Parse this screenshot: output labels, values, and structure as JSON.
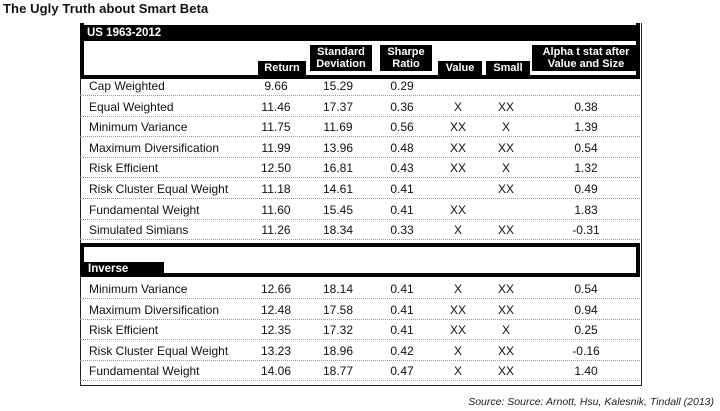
{
  "title": "The Ugly Truth about Smart Beta",
  "headers": {
    "section1": "US 1963-2012",
    "return": "Return",
    "std_line1": "Standard",
    "std_line2": "Deviation",
    "sharpe_line1": "Sharpe",
    "sharpe_line2": "Ratio",
    "value": "Value",
    "small": "Small",
    "alpha_line1": "Alpha t stat after",
    "alpha_line2": "Value and Size"
  },
  "section1_rows": [
    {
      "name": "Cap Weighted",
      "ret": "9.66",
      "sd": "15.29",
      "sr": "0.29",
      "val": "",
      "sm": "",
      "alp": ""
    },
    {
      "name": "Equal Weighted",
      "ret": "11.46",
      "sd": "17.37",
      "sr": "0.36",
      "val": "X",
      "sm": "XX",
      "alp": "0.38"
    },
    {
      "name": "Minimum Variance",
      "ret": "11.75",
      "sd": "11.69",
      "sr": "0.56",
      "val": "XX",
      "sm": "X",
      "alp": "1.39"
    },
    {
      "name": "Maximum Diversification",
      "ret": "11.99",
      "sd": "13.96",
      "sr": "0.48",
      "val": "XX",
      "sm": "XX",
      "alp": "0.54"
    },
    {
      "name": "Risk Efficient",
      "ret": "12.50",
      "sd": "16.81",
      "sr": "0.43",
      "val": "XX",
      "sm": "X",
      "alp": "1.32"
    },
    {
      "name": "Risk Cluster Equal Weight",
      "ret": "11.18",
      "sd": "14.61",
      "sr": "0.41",
      "val": "",
      "sm": "XX",
      "alp": "0.49"
    },
    {
      "name": "Fundamental Weight",
      "ret": "11.60",
      "sd": "15.45",
      "sr": "0.41",
      "val": "XX",
      "sm": "",
      "alp": "1.83"
    },
    {
      "name": "Simulated Simians",
      "ret": "11.26",
      "sd": "18.34",
      "sr": "0.33",
      "val": "X",
      "sm": "XX",
      "alp": "-0.31"
    }
  ],
  "section2_title": "Inverse Strategies",
  "section2_rows": [
    {
      "name": "Minimum Variance",
      "ret": "12.66",
      "sd": "18.14",
      "sr": "0.41",
      "val": "X",
      "sm": "XX",
      "alp": "0.54"
    },
    {
      "name": "Maximum Diversification",
      "ret": "12.48",
      "sd": "17.58",
      "sr": "0.41",
      "val": "XX",
      "sm": "XX",
      "alp": "0.94"
    },
    {
      "name": "Risk Efficient",
      "ret": "12.35",
      "sd": "17.32",
      "sr": "0.41",
      "val": "XX",
      "sm": "X",
      "alp": "0.25"
    },
    {
      "name": "Risk Cluster Equal Weight",
      "ret": "13.23",
      "sd": "18.96",
      "sr": "0.42",
      "val": "X",
      "sm": "XX",
      "alp": "-0.16"
    },
    {
      "name": "Fundamental Weight",
      "ret": "14.06",
      "sd": "18.77",
      "sr": "0.47",
      "val": "X",
      "sm": "XX",
      "alp": "1.40"
    }
  ],
  "source": "Source: Source: Arnott, Hsu, Kalesnik, Tindall (2013)"
}
